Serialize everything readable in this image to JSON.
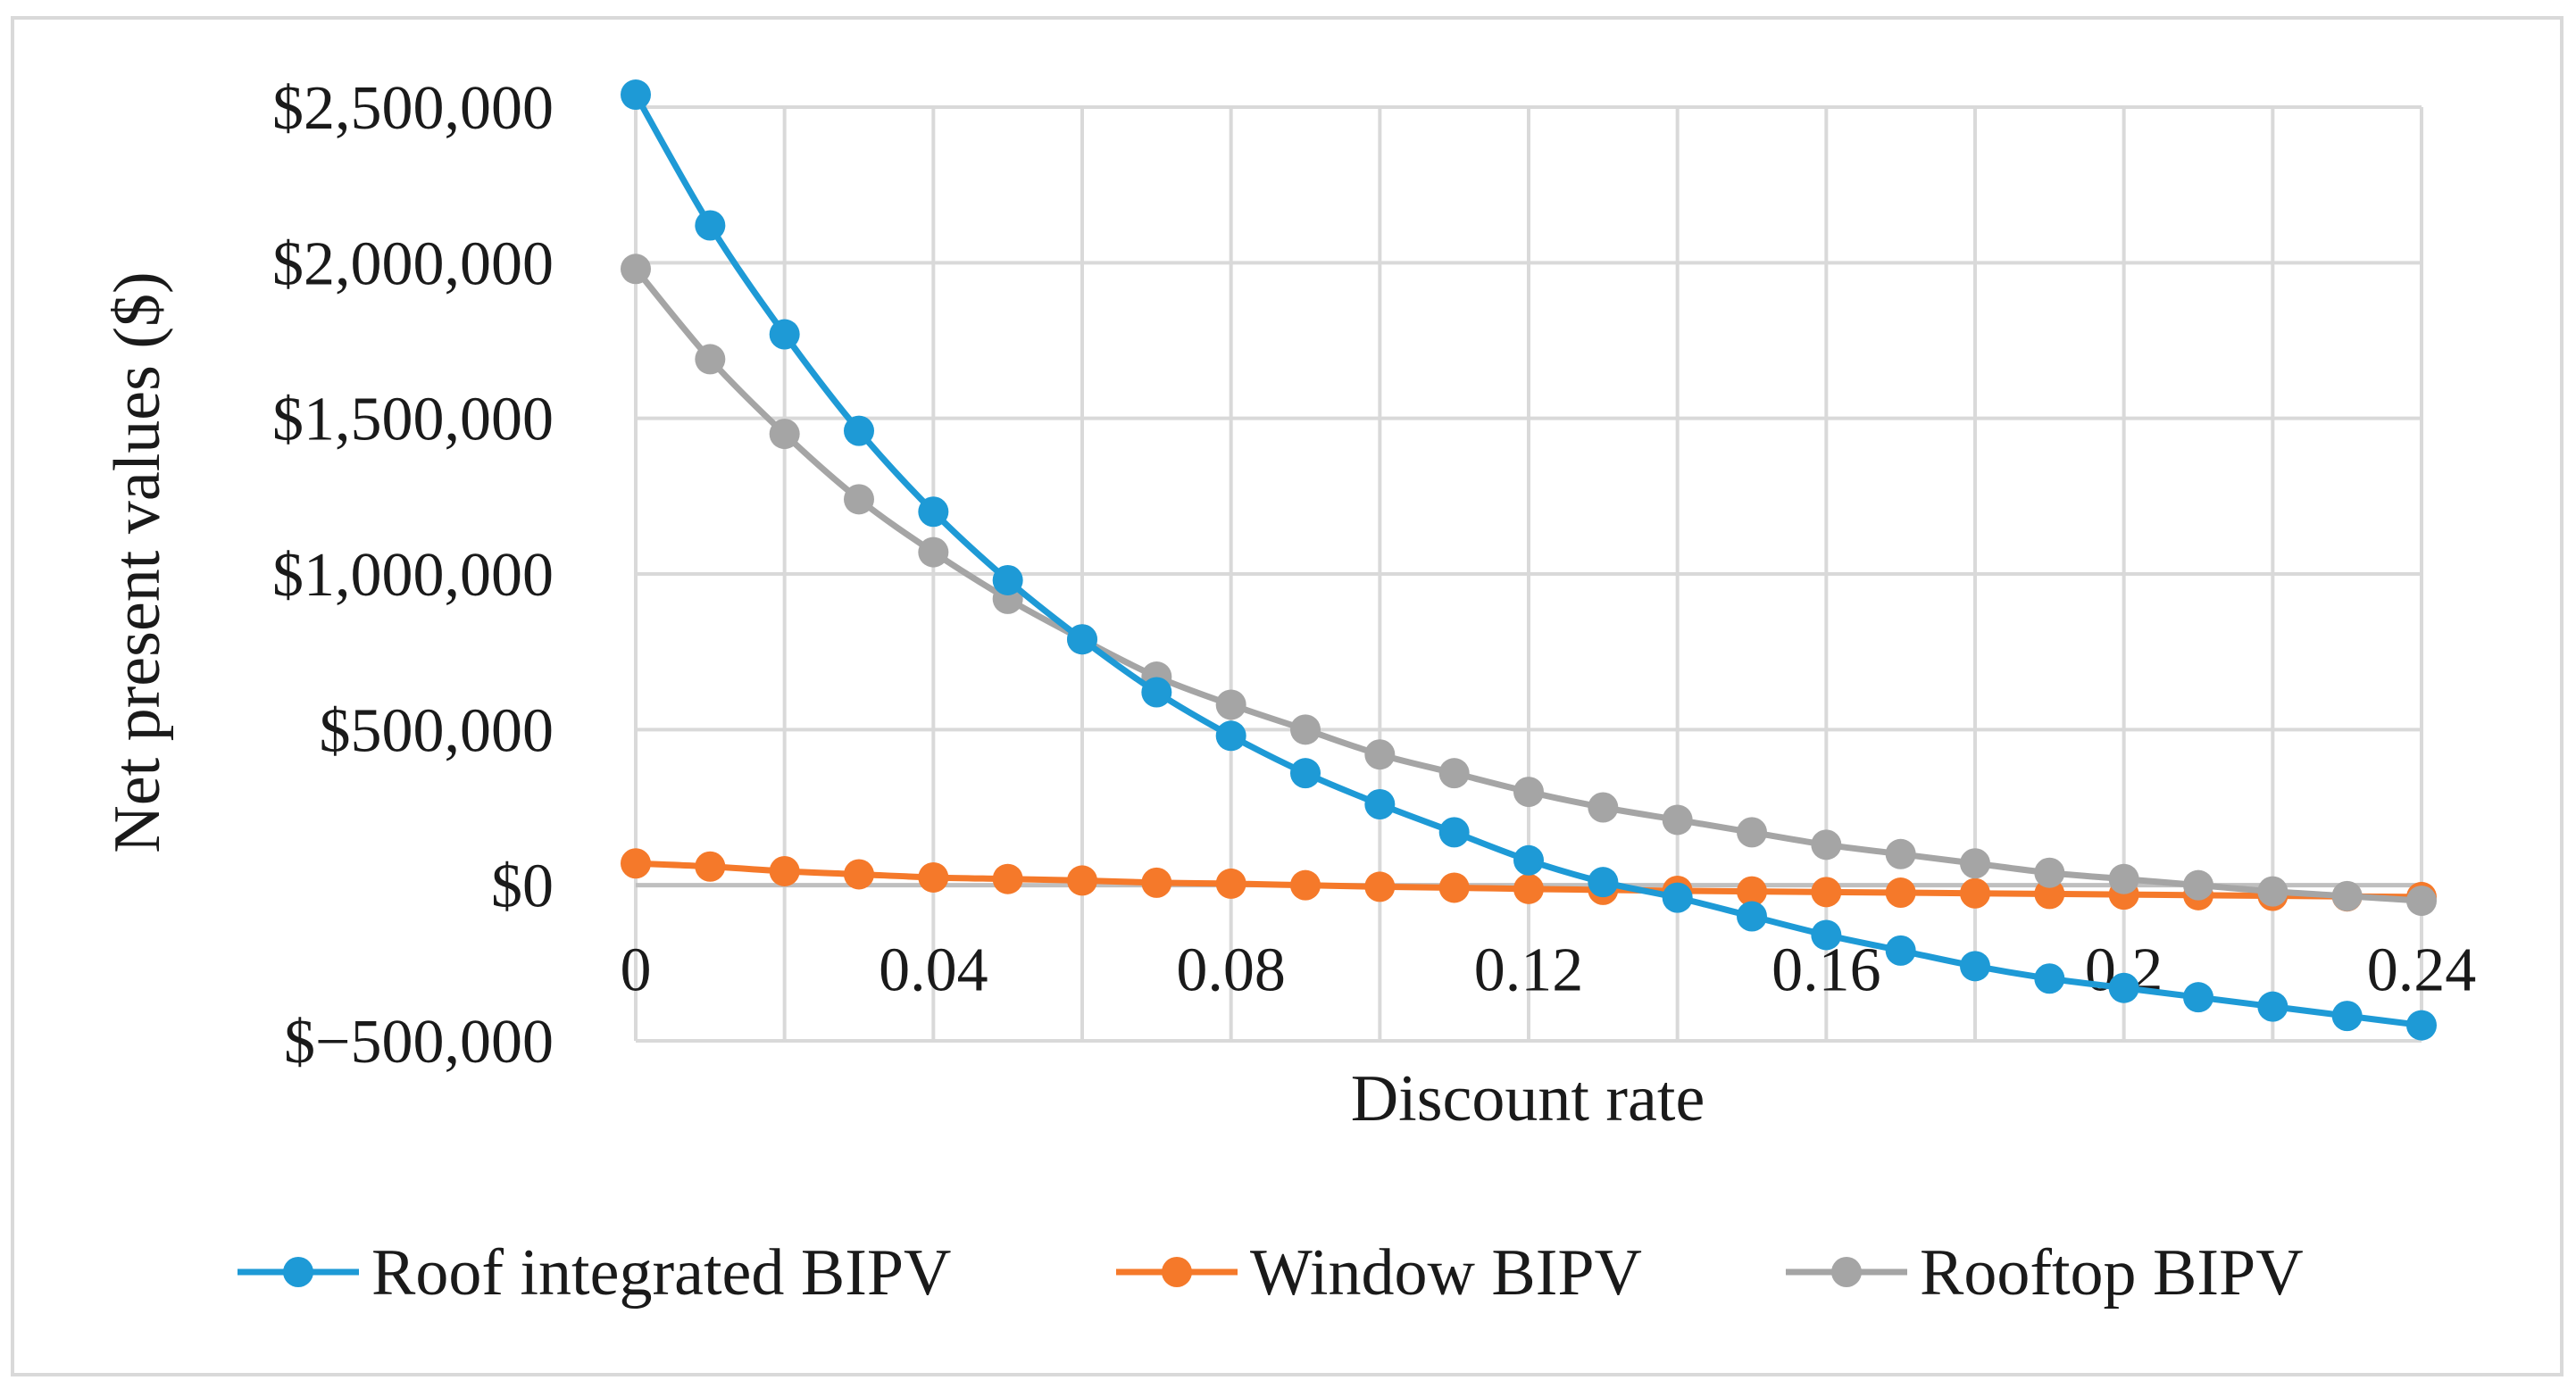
{
  "chart_data": {
    "type": "line",
    "title": "",
    "xlabel": "Discount rate",
    "ylabel": "Net present values  ($)",
    "xlim": [
      0,
      0.24
    ],
    "ylim": [
      -500000,
      2500000
    ],
    "x_ticks": [
      0,
      0.04,
      0.08,
      0.12,
      0.16,
      0.2,
      0.24
    ],
    "x_tick_labels": [
      "0",
      "0.04",
      "0.08",
      "0.12",
      "0.16",
      "0.2",
      "0.24"
    ],
    "y_ticks": [
      2500000,
      2000000,
      1500000,
      1000000,
      500000,
      0,
      -500000
    ],
    "y_tick_labels": [
      "$2,500,000",
      "$2,000,000",
      "$1,500,000",
      "$1,000,000",
      "$500,000",
      "$0",
      "$−500,000"
    ],
    "grid": true,
    "legend_position": "bottom",
    "x": [
      0,
      0.01,
      0.02,
      0.03,
      0.04,
      0.05,
      0.06,
      0.07,
      0.08,
      0.09,
      0.1,
      0.11,
      0.12,
      0.13,
      0.14,
      0.15,
      0.16,
      0.17,
      0.18,
      0.19,
      0.2,
      0.21,
      0.22,
      0.23,
      0.24
    ],
    "series": [
      {
        "name": "Roof integrated BIPV",
        "color": "#1E9AD6",
        "values": [
          2540000,
          2120000,
          1770000,
          1460000,
          1200000,
          980000,
          790000,
          620000,
          480000,
          360000,
          260000,
          170000,
          80000,
          10000,
          -40000,
          -100000,
          -160000,
          -210000,
          -260000,
          -300000,
          -330000,
          -360000,
          -390000,
          -420000,
          -450000
        ]
      },
      {
        "name": "Window BIPV",
        "color": "#F5792A",
        "values": [
          70000,
          60000,
          45000,
          35000,
          25000,
          20000,
          15000,
          8000,
          5000,
          0,
          -5000,
          -8000,
          -12000,
          -15000,
          -18000,
          -20000,
          -22000,
          -24000,
          -26000,
          -28000,
          -30000,
          -32000,
          -34000,
          -36000,
          -38000
        ]
      },
      {
        "name": "Rooftop BIPV",
        "color": "#A5A5A5",
        "values": [
          1980000,
          1690000,
          1450000,
          1240000,
          1070000,
          920000,
          790000,
          670000,
          580000,
          500000,
          420000,
          360000,
          300000,
          250000,
          210000,
          170000,
          130000,
          100000,
          70000,
          40000,
          20000,
          0,
          -20000,
          -35000,
          -50000
        ]
      }
    ]
  }
}
